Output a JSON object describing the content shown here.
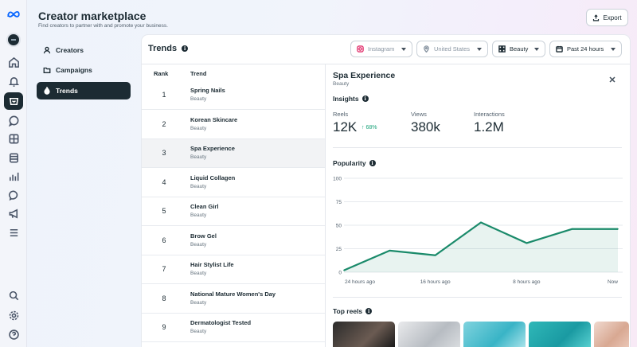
{
  "header": {
    "title": "Creator marketplace",
    "subtitle": "Find creators to partner with and promote your business.",
    "export_label": "Export"
  },
  "rail": {
    "icons": [
      "meta-logo-icon",
      "avatar",
      "home-icon",
      "bell-icon",
      "creator-marketplace-icon",
      "chat-icon",
      "grid-icon",
      "content-icon",
      "insights-icon",
      "messenger-icon",
      "megaphone-icon",
      "menu-icon",
      "search-icon",
      "settings-icon",
      "help-icon"
    ]
  },
  "sidebar": {
    "items": [
      {
        "label": "Creators",
        "icon": "person-icon",
        "active": false
      },
      {
        "label": "Campaigns",
        "icon": "folder-icon",
        "active": false
      },
      {
        "label": "Trends",
        "icon": "flame-icon",
        "active": true
      }
    ]
  },
  "trends": {
    "title": "Trends",
    "filters": {
      "platform": "Instagram",
      "location": "United States",
      "category": "Beauty",
      "time_range": "Past 24 hours"
    },
    "columns": {
      "rank": "Rank",
      "trend": "Trend"
    },
    "rows": [
      {
        "rank": "1",
        "name": "Spring Nails",
        "category": "Beauty"
      },
      {
        "rank": "2",
        "name": "Korean Skincare",
        "category": "Beauty"
      },
      {
        "rank": "3",
        "name": "Spa Experience",
        "category": "Beauty"
      },
      {
        "rank": "4",
        "name": "Liquid Collagen",
        "category": "Beauty"
      },
      {
        "rank": "5",
        "name": "Clean Girl",
        "category": "Beauty"
      },
      {
        "rank": "6",
        "name": "Brow Gel",
        "category": "Beauty"
      },
      {
        "rank": "7",
        "name": "Hair Stylist Life",
        "category": "Beauty"
      },
      {
        "rank": "8",
        "name": "National Mature Women's Day",
        "category": "Beauty"
      },
      {
        "rank": "9",
        "name": "Dermatologist Tested",
        "category": "Beauty"
      }
    ],
    "selected_rank": "3"
  },
  "detail": {
    "title": "Spa Experience",
    "category": "Beauty",
    "insights_title": "Insights",
    "metrics": {
      "reels_label": "Reels",
      "reels_value": "12K",
      "reels_delta": "↑ 68%",
      "views_label": "Views",
      "views_value": "380k",
      "interactions_label": "Interactions",
      "interactions_value": "1.2M"
    },
    "popularity_title": "Popularity",
    "top_reels_title": "Top reels"
  },
  "chart_data": {
    "type": "area",
    "title": "Popularity",
    "x": [
      "24 hours ago",
      "20 hours ago",
      "16 hours ago",
      "12 hours ago",
      "8 hours ago",
      "4 hours ago",
      "Now"
    ],
    "x_tick_labels": [
      "24 hours ago",
      "16 hours ago",
      "8 hours ago",
      "Now"
    ],
    "series": [
      {
        "values": [
          2,
          23,
          18,
          53,
          31,
          46,
          46
        ]
      }
    ],
    "ylim": [
      0,
      100
    ],
    "yticks": [
      "0",
      "25",
      "50",
      "75",
      "100"
    ],
    "grid": true,
    "color": "#1a8a6a"
  },
  "colors": {
    "accent": "#1a8a6a",
    "dark": "#1c2b33",
    "positive": "#1aa37a"
  }
}
